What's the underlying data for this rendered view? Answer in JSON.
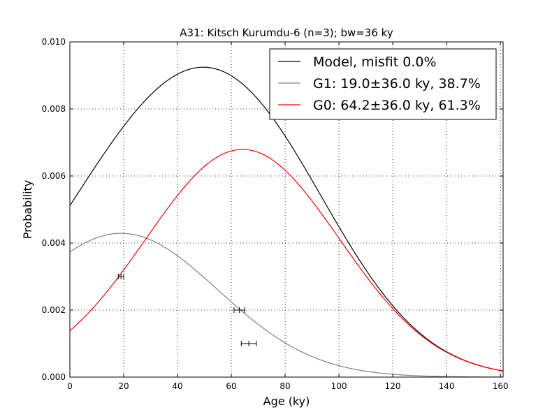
{
  "chart_data": {
    "type": "line",
    "title": "A31: Kitsch Kurumdu-6 (n=3); bw=36 ky",
    "xlabel": "Age (ky)",
    "ylabel": "Probability",
    "xlim": [
      0,
      161
    ],
    "ylim": [
      0,
      0.01
    ],
    "xticks": [
      0,
      20,
      40,
      60,
      80,
      100,
      120,
      140,
      160
    ],
    "xtick_labels": [
      "0",
      "20",
      "40",
      "60",
      "80",
      "100",
      "120",
      "140",
      "160"
    ],
    "yticks": [
      0,
      0.002,
      0.004,
      0.006,
      0.008,
      0.01
    ],
    "ytick_labels": [
      "0.000",
      "0.002",
      "0.004",
      "0.006",
      "0.008",
      "0.010"
    ],
    "grid": true,
    "legend_position": "top-right",
    "series": [
      {
        "name": "Model, misfit 0.0%",
        "kind": "mixture",
        "color": "#000000"
      },
      {
        "name": "G1: 19.0±36.0 ky, 38.7%",
        "kind": "gaussian",
        "mean": 19.0,
        "sigma": 36.0,
        "weight": 0.387,
        "color": "#808080"
      },
      {
        "name": "G0: 64.2±36.0 ky, 61.3%",
        "kind": "gaussian",
        "mean": 64.2,
        "sigma": 36.0,
        "weight": 0.613,
        "color": "#ff0000"
      }
    ],
    "error_bars": [
      {
        "x": 19.0,
        "xerr": 1.0,
        "y": 0.003
      },
      {
        "x": 63.0,
        "xerr": 2.0,
        "y": 0.002
      },
      {
        "x": 66.5,
        "xerr": 2.8,
        "y": 0.001
      }
    ]
  }
}
